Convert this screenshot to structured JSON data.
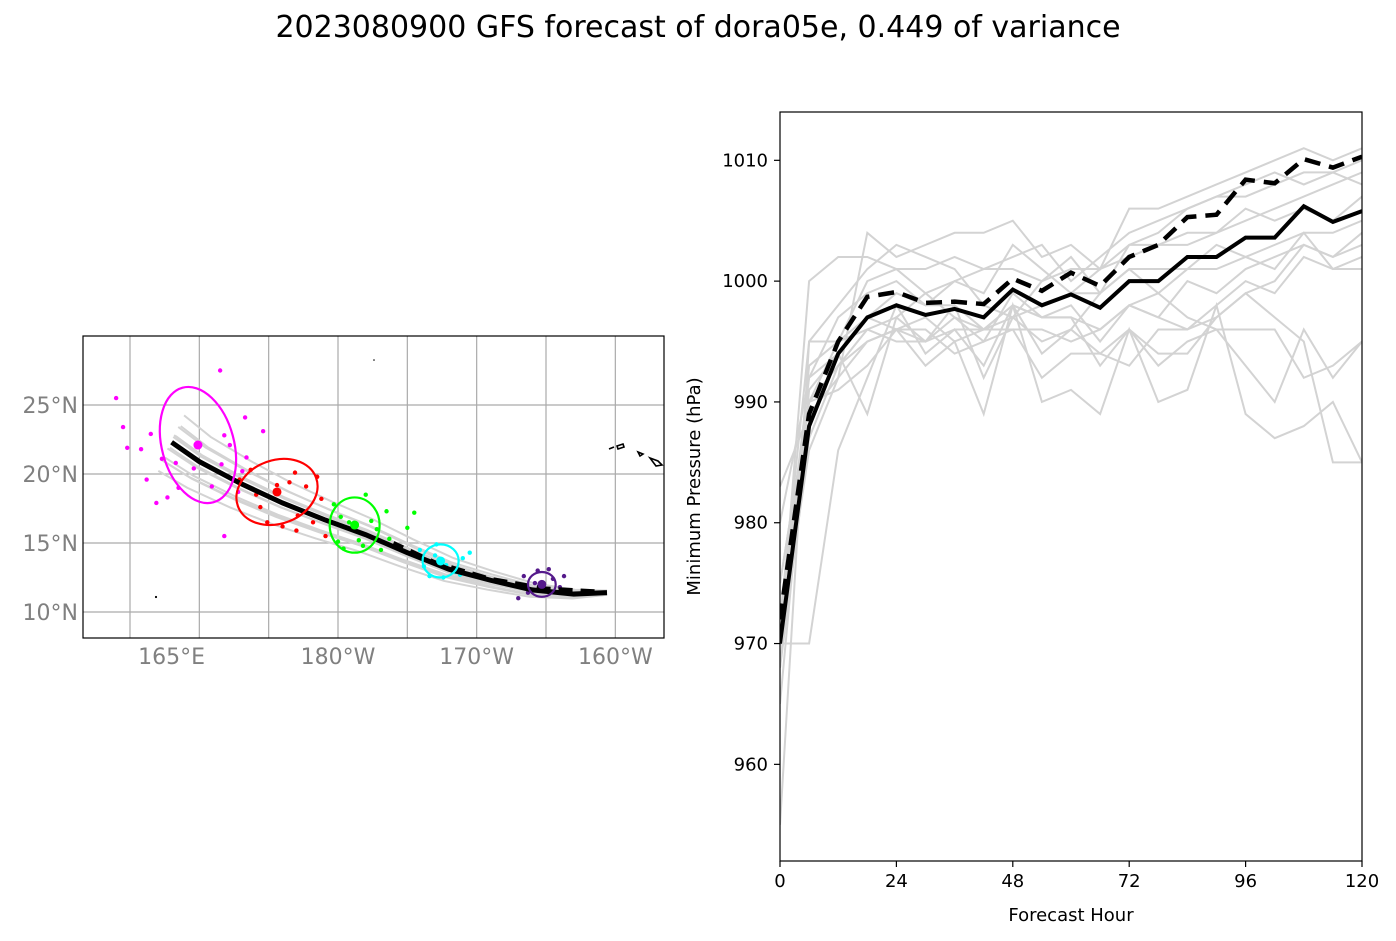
{
  "title": "2023080900 GFS forecast of dora05e, 0.449 of variance",
  "chart_data": [
    {
      "type": "map-track",
      "lon_ticks": [
        "165°E",
        "180°W",
        "170°W",
        "160°W"
      ],
      "lat_ticks": [
        "25°N",
        "20°N",
        "15°N",
        "10°N"
      ],
      "grid": true,
      "mean_track_solid": [
        [
          -160.6,
          11.4
        ],
        [
          -163,
          11.3
        ],
        [
          -166,
          11.6
        ],
        [
          -169,
          12.3
        ],
        [
          -172,
          13.1
        ],
        [
          -175,
          14.3
        ],
        [
          -178,
          15.6
        ],
        [
          -181,
          16.7
        ],
        [
          -184,
          17.9
        ],
        [
          -187,
          19.3
        ],
        [
          -190,
          20.9
        ],
        [
          -192,
          22.3
        ]
      ],
      "mean_track_dashed": [
        [
          -161.5,
          11.5
        ],
        [
          -165,
          11.7
        ],
        [
          -169,
          12.4
        ],
        [
          -173,
          13.6
        ],
        [
          -176,
          15.0
        ]
      ],
      "ellipses": [
        {
          "color": "#ff00ff",
          "lon": -190.1,
          "lat": 22.1,
          "rx": 2.6,
          "ry": 4.3,
          "rot": -15
        },
        {
          "color": "#ff0000",
          "lon": -184.4,
          "lat": 18.7,
          "rx": 3.0,
          "ry": 2.3,
          "rot": -20
        },
        {
          "color": "#00ff00",
          "lon": -178.8,
          "lat": 16.3,
          "rx": 1.8,
          "ry": 2.0,
          "rot": 0
        },
        {
          "color": "#00ffff",
          "lon": -172.6,
          "lat": 13.7,
          "rx": 1.3,
          "ry": 1.2,
          "rot": 0
        },
        {
          "color": "#551a8b",
          "lon": -165.3,
          "lat": 12.0,
          "rx": 1.0,
          "ry": 0.9,
          "rot": 0
        }
      ],
      "member_points": [
        {
          "color": "#ff00ff",
          "points": [
            [
              -196,
              25.5
            ],
            [
              -193.5,
              22.9
            ],
            [
              -195.5,
              23.4
            ],
            [
              -194.2,
              21.8
            ],
            [
              -192.7,
              21.1
            ],
            [
              -191.7,
              20.8
            ],
            [
              -193.8,
              19.6
            ],
            [
              -192.3,
              18.3
            ],
            [
              -193.1,
              17.9
            ],
            [
              -189.1,
              19.1
            ],
            [
              -188.4,
              20.7
            ],
            [
              -187.8,
              22.1
            ],
            [
              -188.2,
              22.8
            ],
            [
              -186.9,
              20.2
            ],
            [
              -187.2,
              18.7
            ],
            [
              -186.6,
              21.2
            ],
            [
              -185.4,
              23.1
            ],
            [
              -186.7,
              24.1
            ],
            [
              -188.5,
              27.5
            ],
            [
              -188.2,
              15.5
            ],
            [
              -190.4,
              20.4
            ],
            [
              -191.5,
              19.0
            ],
            [
              -195.2,
              21.9
            ]
          ]
        },
        {
          "color": "#ff0000",
          "points": [
            [
              -187.1,
              19.6
            ],
            [
              -185.9,
              18.5
            ],
            [
              -185.6,
              17.6
            ],
            [
              -183.5,
              19.4
            ],
            [
              -182.3,
              19.1
            ],
            [
              -181.2,
              18.2
            ],
            [
              -181.8,
              16.5
            ],
            [
              -183.0,
              15.9
            ],
            [
              -182.9,
              17.0
            ],
            [
              -181.5,
              19.8
            ],
            [
              -183.1,
              20.1
            ],
            [
              -184.4,
              19.2
            ],
            [
              -185.1,
              16.5
            ],
            [
              -180.9,
              15.5
            ],
            [
              -186.3,
              20.3
            ],
            [
              -184.0,
              16.2
            ]
          ]
        },
        {
          "color": "#00ff00",
          "points": [
            [
              -179.8,
              16.9
            ],
            [
              -179.2,
              16.5
            ],
            [
              -178.5,
              15.2
            ],
            [
              -177.2,
              16.0
            ],
            [
              -176.5,
              17.3
            ],
            [
              -179.6,
              14.6
            ],
            [
              -178.2,
              14.8
            ],
            [
              -176.9,
              14.5
            ],
            [
              -180.3,
              17.8
            ],
            [
              -178.0,
              18.5
            ],
            [
              -175.0,
              16.1
            ],
            [
              -176.3,
              15.3
            ],
            [
              -174.5,
              17.2
            ],
            [
              -180.0,
              15.1
            ],
            [
              -177.6,
              16.6
            ]
          ]
        },
        {
          "color": "#00ffff",
          "points": [
            [
              -173.0,
              14.1
            ],
            [
              -172.2,
              13.4
            ],
            [
              -171.5,
              12.9
            ],
            [
              -173.4,
              12.6
            ],
            [
              -172.9,
              14.9
            ],
            [
              -171.0,
              13.9
            ],
            [
              -170.5,
              14.3
            ],
            [
              -173.8,
              13.3
            ],
            [
              -172.4,
              12.5
            ],
            [
              -174.1,
              14.5
            ],
            [
              -171.2,
              12.7
            ]
          ]
        },
        {
          "color": "#551a8b",
          "points": [
            [
              -165.8,
              12.1
            ],
            [
              -164.5,
              12.4
            ],
            [
              -165.2,
              11.5
            ],
            [
              -164.0,
              11.8
            ],
            [
              -166.6,
              12.6
            ],
            [
              -165.6,
              13.0
            ],
            [
              -167.0,
              11.0
            ],
            [
              -163.7,
              12.6
            ],
            [
              -164.8,
              13.1
            ],
            [
              -166.3,
              11.4
            ],
            [
              -163.5,
              11.4
            ]
          ]
        }
      ]
    },
    {
      "type": "line",
      "xlabel": "Forecast Hour",
      "ylabel": "Minimum Pressure (hPa)",
      "xlim": [
        0,
        120
      ],
      "ylim": [
        952,
        1014
      ],
      "xticks": [
        0,
        24,
        48,
        72,
        96,
        120
      ],
      "yticks": [
        960,
        970,
        980,
        990,
        1000,
        1010
      ],
      "x": [
        0,
        6,
        12,
        18,
        24,
        30,
        36,
        42,
        48,
        54,
        60,
        66,
        72,
        78,
        84,
        90,
        96,
        102,
        108,
        114,
        120
      ],
      "series": [
        {
          "style": "solid",
          "color": "#000000",
          "values": [
            970,
            988,
            994,
            997,
            998,
            997.2,
            997.7,
            997,
            999.3,
            998,
            998.9,
            997.8,
            1000,
            1000,
            1002,
            1002,
            1003.6,
            1003.6,
            1006.2,
            1004.9,
            1005.8
          ]
        },
        {
          "style": "dashed",
          "color": "#000000",
          "values": [
            972,
            989,
            995,
            998.7,
            999.1,
            998.2,
            998.3,
            998.1,
            1000.2,
            999.2,
            1000.7,
            999.6,
            1002,
            1003,
            1005.3,
            1005.5,
            1008.4,
            1008.1,
            1010.1,
            1009.4,
            1010.3
          ]
        },
        {
          "style": "member",
          "color": "#d3d3d3",
          "values": [
            970,
            1000,
            1002,
            1002,
            1001,
            1001,
            1002,
            1001,
            1001,
            1000,
            1001,
            1001,
            1002,
            1003,
            1003,
            1004,
            1005,
            1006,
            1007,
            1008,
            1009
          ]
        },
        {
          "style": "member",
          "color": "#d3d3d3",
          "values": [
            983,
            989,
            992,
            1004,
            1002,
            1003,
            1004,
            1004,
            1005,
            1002,
            1003,
            1001,
            1006,
            1006,
            1007,
            1008,
            1009,
            1010,
            1011,
            1010,
            1011
          ]
        },
        {
          "style": "member",
          "color": "#d3d3d3",
          "values": [
            975,
            990,
            995,
            1000,
            1001,
            999,
            1000,
            1001,
            1002,
            1003,
            1000,
            1002,
            1004,
            1005,
            1006,
            1007,
            1008,
            1009,
            1008,
            1009,
            1008
          ]
        },
        {
          "style": "member",
          "color": "#d3d3d3",
          "values": [
            955,
            995,
            998,
            1001,
            1003,
            1002,
            1001,
            998,
            997,
            1000,
            1002,
            999,
            1003,
            1004,
            1006,
            1007,
            1007,
            1008,
            1009,
            1009,
            1010
          ]
        },
        {
          "style": "member",
          "color": "#d3d3d3",
          "values": [
            972,
            992,
            997,
            999,
            1000,
            998,
            1000,
            999,
            1003,
            1001,
            999,
            1001,
            1003,
            1003,
            1004,
            1004,
            1006,
            1005,
            1006,
            1005,
            1007
          ]
        },
        {
          "style": "member",
          "color": "#d3d3d3",
          "values": [
            968,
            987,
            993,
            996,
            997,
            999,
            997,
            996,
            998,
            997,
            998,
            995,
            998,
            999,
            1001,
            1001,
            1002,
            1003,
            1004,
            1004,
            1005
          ]
        },
        {
          "style": "member",
          "color": "#d3d3d3",
          "values": [
            970,
            986,
            992,
            995,
            996,
            995,
            996,
            996,
            996,
            996,
            995,
            996,
            998,
            997,
            1000,
            999,
            1001,
            1002,
            1003,
            1002,
            1003
          ]
        },
        {
          "style": "member",
          "color": "#d3d3d3",
          "values": [
            970,
            970,
            986,
            992,
            998,
            994,
            996,
            993,
            998,
            994,
            996,
            994,
            996,
            994,
            994,
            997,
            999,
            1000,
            1003,
            1002,
            1004
          ]
        },
        {
          "style": "member",
          "color": "#d3d3d3",
          "values": [
            972,
            990,
            993,
            995,
            996,
            996,
            994,
            995,
            996,
            992,
            994,
            994,
            993,
            996,
            996,
            998,
            1000,
            999,
            1002,
            1001,
            1002
          ]
        },
        {
          "style": "member",
          "color": "#d3d3d3",
          "values": [
            975,
            990,
            991,
            993,
            996,
            993,
            995,
            989,
            998,
            990,
            991,
            989,
            996,
            990,
            991,
            998,
            989,
            987,
            988,
            990,
            985
          ]
        },
        {
          "style": "member",
          "color": "#d3d3d3",
          "values": [
            980,
            992,
            994,
            989,
            997,
            995,
            997,
            995,
            999,
            997,
            997,
            993,
            996,
            993,
            995,
            996,
            996,
            996,
            992,
            993,
            995
          ]
        },
        {
          "style": "member",
          "color": "#d3d3d3",
          "values": [
            968,
            993,
            995,
            996,
            995,
            995,
            998,
            992,
            997,
            995,
            996,
            999,
            1001,
            999,
            997,
            996,
            993,
            990,
            996,
            992,
            995
          ]
        },
        {
          "style": "member",
          "color": "#d3d3d3",
          "values": [
            965,
            991,
            994,
            997,
            996,
            997,
            995,
            996,
            998,
            997,
            997,
            996,
            998,
            997,
            996,
            997,
            999,
            997,
            995,
            985,
            985
          ]
        },
        {
          "style": "member",
          "color": "#d3d3d3",
          "values": [
            972,
            995,
            995,
            997,
            999,
            998,
            998,
            996,
            997,
            998,
            999,
            999,
            1001,
            1001,
            1001,
            1003,
            1002,
            1001,
            1004,
            1001,
            1001
          ]
        }
      ]
    }
  ]
}
